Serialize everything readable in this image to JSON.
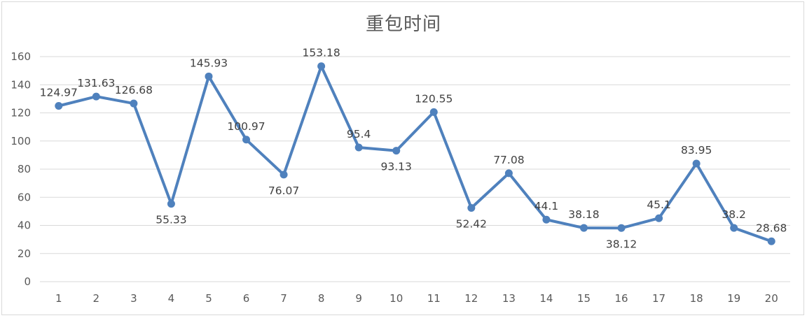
{
  "chart_data": {
    "type": "line",
    "title": "重包时间",
    "xlabel": "",
    "ylabel": "",
    "categories": [
      "1",
      "2",
      "3",
      "4",
      "5",
      "6",
      "7",
      "8",
      "9",
      "10",
      "11",
      "12",
      "13",
      "14",
      "15",
      "16",
      "17",
      "18",
      "19",
      "20"
    ],
    "series": [
      {
        "values": [
          124.97,
          131.63,
          126.68,
          55.33,
          145.93,
          100.97,
          76.07,
          153.18,
          95.4,
          93.13,
          120.55,
          52.42,
          77.08,
          44.1,
          38.18,
          38.12,
          45.1,
          83.95,
          38.2,
          28.68
        ],
        "labels": [
          "124.97",
          "131.63",
          "126.68",
          "55.33",
          "145.93",
          "100.97",
          "76.07",
          "153.18",
          "95.4",
          "93.13",
          "120.55",
          "52.42",
          "77.08",
          "44.1",
          "38.18",
          "38.12",
          "45.1",
          "83.95",
          "38.2",
          "28.68"
        ],
        "color": "#4f81bd",
        "marker": "circle"
      }
    ],
    "ylim": [
      0,
      160
    ],
    "yticks": [
      "0",
      "20",
      "40",
      "60",
      "80",
      "100",
      "120",
      "140",
      "160"
    ],
    "grid": true,
    "legend": "none",
    "gridline_color": "#d9d9d9"
  }
}
